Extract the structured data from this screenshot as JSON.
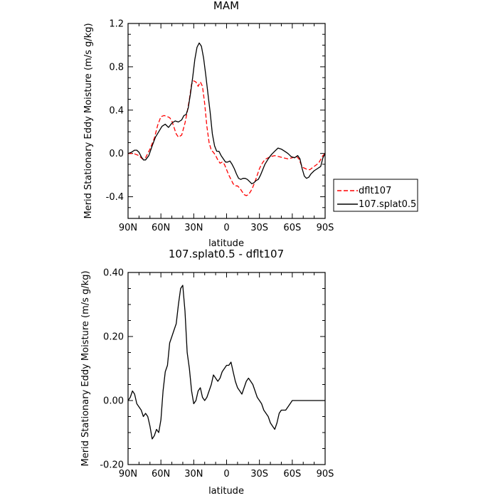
{
  "chart_data": [
    {
      "type": "line",
      "title": "MAM",
      "xlabel": "latitude",
      "ylabel": "Merid Stationary Eddy Moisture (m/s g/kg)",
      "xlim": [
        90,
        -90
      ],
      "ylim": [
        -0.6,
        1.2
      ],
      "x_ticks": [
        90,
        60,
        30,
        0,
        -30,
        -60,
        -90
      ],
      "x_tick_labels": [
        "90N",
        "60N",
        "30N",
        "0",
        "30S",
        "60S",
        "90S"
      ],
      "y_ticks": [
        -0.4,
        0.0,
        0.4,
        0.8,
        1.2
      ],
      "y_tick_labels": [
        "-0.4",
        "0.0",
        "0.4",
        "0.8",
        "1.2"
      ],
      "grid": false,
      "legend_placement": "outside-right",
      "series": [
        {
          "name": "dflt107",
          "color": "#ff0000",
          "dash": "dashed",
          "x": [
            90,
            85,
            80,
            77,
            74,
            70,
            66,
            63,
            60,
            57,
            54,
            52,
            50,
            48,
            46,
            44,
            41,
            38,
            36,
            34,
            32,
            30,
            28,
            26,
            24,
            22,
            20,
            18,
            16,
            14,
            12,
            10,
            8,
            6,
            4,
            2,
            0,
            -2,
            -4,
            -6,
            -8,
            -10,
            -12,
            -14,
            -16,
            -18,
            -20,
            -22,
            -24,
            -26,
            -28,
            -30,
            -32,
            -34,
            -36,
            -40,
            -44,
            -48,
            -52,
            -56,
            -60,
            -64,
            -66,
            -68,
            -70,
            -72,
            -74,
            -76,
            -80,
            -84,
            -88,
            -90
          ],
          "y": [
            0.0,
            0.0,
            -0.02,
            -0.05,
            -0.04,
            0.04,
            0.14,
            0.26,
            0.34,
            0.35,
            0.34,
            0.33,
            0.3,
            0.24,
            0.18,
            0.15,
            0.17,
            0.28,
            0.38,
            0.5,
            0.64,
            0.67,
            0.66,
            0.62,
            0.66,
            0.62,
            0.46,
            0.25,
            0.1,
            0.03,
            0.01,
            -0.02,
            -0.06,
            -0.09,
            -0.08,
            -0.1,
            -0.15,
            -0.2,
            -0.24,
            -0.28,
            -0.3,
            -0.3,
            -0.32,
            -0.35,
            -0.38,
            -0.39,
            -0.38,
            -0.35,
            -0.31,
            -0.26,
            -0.2,
            -0.14,
            -0.1,
            -0.07,
            -0.05,
            -0.03,
            -0.02,
            -0.03,
            -0.04,
            -0.05,
            -0.04,
            -0.03,
            -0.05,
            -0.1,
            -0.13,
            -0.14,
            -0.15,
            -0.15,
            -0.12,
            -0.09,
            -0.02,
            0.0
          ]
        },
        {
          "name": "107.splat0.5",
          "color": "#000000",
          "dash": "solid",
          "x": [
            90,
            87,
            84,
            82,
            80,
            78,
            76,
            74,
            71,
            68,
            65,
            62,
            59,
            56,
            53,
            50,
            47,
            44,
            41,
            39,
            37,
            35,
            33,
            31,
            29,
            27,
            25,
            23,
            21,
            19,
            17,
            15,
            13,
            11,
            9,
            7,
            5,
            3,
            1,
            -1,
            -3,
            -5,
            -7,
            -9,
            -11,
            -13,
            -15,
            -17,
            -19,
            -21,
            -23,
            -25,
            -27,
            -29,
            -31,
            -33,
            -35,
            -38,
            -41,
            -44,
            -47,
            -50,
            -53,
            -56,
            -59,
            -62,
            -65,
            -67,
            -69,
            -71,
            -73,
            -75,
            -77,
            -80,
            -83,
            -86,
            -88,
            -90
          ],
          "y": [
            0.0,
            0.01,
            0.03,
            0.03,
            0.01,
            -0.03,
            -0.06,
            -0.06,
            -0.02,
            0.07,
            0.15,
            0.2,
            0.25,
            0.27,
            0.24,
            0.28,
            0.3,
            0.29,
            0.31,
            0.35,
            0.36,
            0.42,
            0.55,
            0.7,
            0.87,
            0.98,
            1.02,
            0.99,
            0.88,
            0.72,
            0.55,
            0.38,
            0.18,
            0.07,
            0.02,
            0.02,
            -0.02,
            -0.05,
            -0.08,
            -0.08,
            -0.07,
            -0.1,
            -0.14,
            -0.19,
            -0.23,
            -0.24,
            -0.23,
            -0.23,
            -0.24,
            -0.26,
            -0.28,
            -0.27,
            -0.25,
            -0.24,
            -0.2,
            -0.15,
            -0.1,
            -0.05,
            -0.01,
            0.02,
            0.05,
            0.04,
            0.02,
            0.0,
            -0.03,
            -0.04,
            -0.02,
            -0.05,
            -0.14,
            -0.21,
            -0.23,
            -0.22,
            -0.19,
            -0.16,
            -0.14,
            -0.12,
            -0.04,
            0.0
          ]
        }
      ]
    },
    {
      "type": "line",
      "title": "107.splat0.5 - dflt107",
      "xlabel": "latitude",
      "ylabel": "Merid Stationary Eddy Moisture (m/s g/kg)",
      "xlim": [
        90,
        -90
      ],
      "ylim": [
        -0.2,
        0.4
      ],
      "x_ticks": [
        90,
        60,
        30,
        0,
        -30,
        -60,
        -90
      ],
      "x_tick_labels": [
        "90N",
        "60N",
        "30N",
        "0",
        "30S",
        "60S",
        "90S"
      ],
      "y_ticks": [
        -0.2,
        0.0,
        0.2,
        0.4
      ],
      "y_tick_labels": [
        "-0.20",
        "0.00",
        "0.20",
        "0.40"
      ],
      "grid": false,
      "series": [
        {
          "color": "#000000",
          "dash": "solid",
          "x": [
            90,
            88,
            86,
            84,
            82,
            80,
            78,
            76,
            74,
            72,
            70,
            68,
            66,
            64,
            62,
            60,
            58,
            56,
            54,
            52,
            50,
            48,
            46,
            44,
            42,
            40,
            38,
            36,
            34,
            32,
            30,
            28,
            26,
            24,
            22,
            20,
            18,
            16,
            14,
            12,
            10,
            8,
            6,
            4,
            2,
            0,
            -2,
            -4,
            -6,
            -8,
            -10,
            -12,
            -14,
            -16,
            -18,
            -20,
            -22,
            -24,
            -26,
            -28,
            -30,
            -32,
            -34,
            -36,
            -38,
            -40,
            -42,
            -44,
            -46,
            -48,
            -50,
            -52,
            -54,
            -56,
            -58,
            -60,
            -62,
            -64,
            -66,
            -68,
            -70,
            -72,
            -74,
            -76,
            -78,
            -80,
            -82,
            -84,
            -86,
            -88,
            -90
          ],
          "y": [
            0.0,
            0.01,
            0.03,
            0.02,
            -0.01,
            -0.02,
            -0.03,
            -0.05,
            -0.04,
            -0.05,
            -0.08,
            -0.12,
            -0.11,
            -0.09,
            -0.1,
            -0.06,
            0.03,
            0.09,
            0.11,
            0.18,
            0.2,
            0.22,
            0.24,
            0.3,
            0.35,
            0.36,
            0.28,
            0.15,
            0.1,
            0.03,
            -0.01,
            0.0,
            0.03,
            0.04,
            0.01,
            0.0,
            0.01,
            0.03,
            0.05,
            0.08,
            0.07,
            0.06,
            0.07,
            0.09,
            0.1,
            0.11,
            0.11,
            0.12,
            0.09,
            0.06,
            0.04,
            0.03,
            0.02,
            0.04,
            0.06,
            0.07,
            0.06,
            0.05,
            0.03,
            0.01,
            0.0,
            -0.01,
            -0.03,
            -0.04,
            -0.05,
            -0.07,
            -0.08,
            -0.09,
            -0.07,
            -0.04,
            -0.03,
            -0.03,
            -0.03,
            -0.02,
            -0.01,
            0.0,
            0.0,
            0.0,
            0.0,
            0.0,
            0.0,
            0.0,
            0.0,
            0.0,
            0.0,
            0.0,
            0.0,
            0.0,
            0.0,
            0.0,
            0.0
          ]
        }
      ]
    }
  ]
}
